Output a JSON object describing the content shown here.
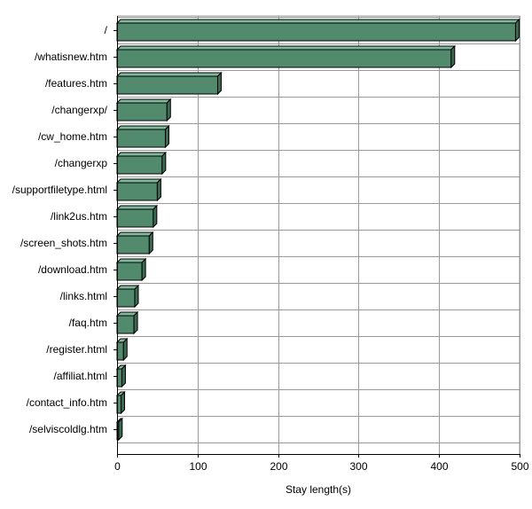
{
  "chart_data": {
    "type": "bar",
    "orientation": "horizontal",
    "title": "",
    "xlabel": "Stay length(s)",
    "ylabel": "",
    "xlim": [
      0,
      500
    ],
    "xticks": [
      0,
      100,
      200,
      300,
      400,
      500
    ],
    "grid": true,
    "legend": "none",
    "categories": [
      "/",
      "/whatisnew.htm",
      "/features.htm",
      "/changerxp/",
      "/cw_home.htm",
      "/changerxp",
      "/supportfiletype.html",
      "/link2us.htm",
      "/screen_shots.htm",
      "/download.htm",
      "/links.html",
      "/faq.htm",
      "/register.html",
      "/affiliat.html",
      "/contact_info.htm",
      "/selviscoldlg.htm"
    ],
    "values": [
      495,
      415,
      125,
      62,
      60,
      56,
      50,
      45,
      40,
      31,
      22,
      21,
      8,
      6,
      5,
      2
    ],
    "colors": {
      "bar_front": "#528a6e",
      "bar_top": "#7fb89b",
      "bar_side": "#3a6b52",
      "bar_stroke": "#000000",
      "grid": "#999999",
      "axis": "#000000"
    }
  }
}
